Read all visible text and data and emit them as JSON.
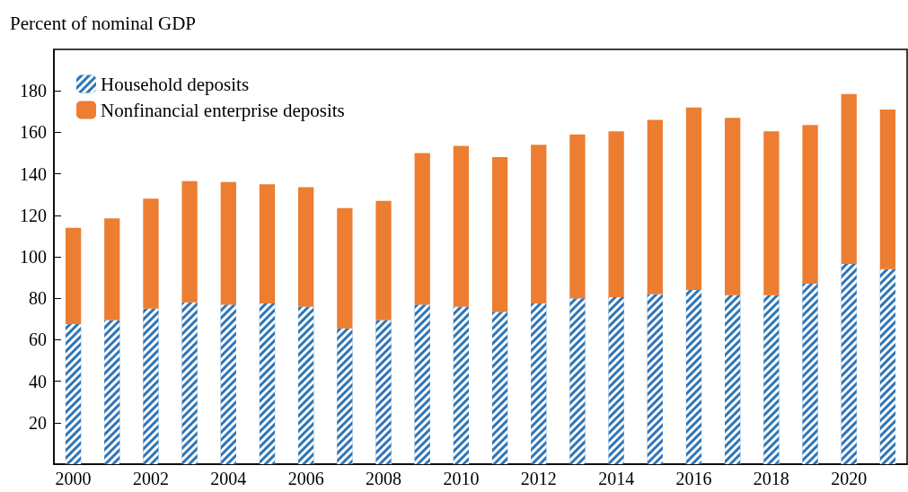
{
  "chart_data": {
    "type": "bar",
    "ylabel": "Percent of nominal GDP",
    "stacked": true,
    "legend": "top left",
    "grid": false,
    "categories": [
      "2000",
      null,
      "2002",
      null,
      "2004",
      null,
      "2006",
      null,
      "2008",
      null,
      "2010",
      null,
      "2012",
      null,
      "2014",
      null,
      "2016",
      null,
      "2018",
      null,
      "2020",
      null
    ],
    "series": [
      {
        "name": "Household deposits",
        "color": "#2e75b6",
        "values": [
          67.5,
          69.5,
          75,
          78,
          77,
          77.5,
          76,
          65.5,
          69.5,
          77,
          76,
          73.5,
          77.5,
          80,
          80.5,
          82,
          84,
          81.5,
          81.5,
          87,
          96.5,
          94
        ]
      },
      {
        "name": "Nonfinancial enterprise deposits",
        "color": "#ed7d31",
        "values": [
          46.5,
          49,
          53,
          58.5,
          59,
          57.5,
          57.5,
          58,
          57.5,
          73,
          77.5,
          74.5,
          76.5,
          79,
          80,
          84,
          88,
          85.5,
          79,
          76.5,
          82,
          77
        ]
      }
    ],
    "ylim": [
      0,
      200
    ],
    "yticks": [
      20,
      40,
      60,
      80,
      100,
      120,
      140,
      160,
      180
    ]
  }
}
